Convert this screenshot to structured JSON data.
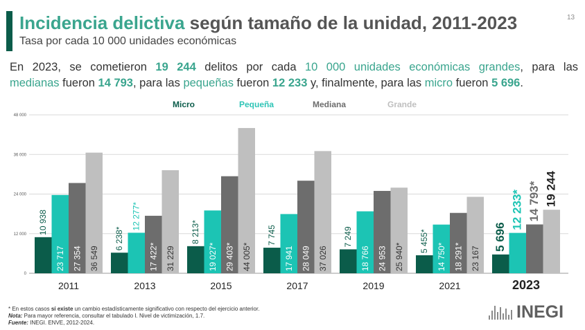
{
  "header": {
    "title_highlight": "Incidencia delictiva",
    "title_rest": " según tamaño de la unidad, 2011-2023",
    "subtitle": "Tasa por cada 10 000 unidades económicas",
    "page_number": "13"
  },
  "summary": {
    "line1": [
      {
        "text": "En 2023, se cometieron ",
        "style": "plain"
      },
      {
        "text": "19 244",
        "style": "b"
      },
      {
        "text": " delitos por cada ",
        "style": "plain"
      },
      {
        "text": "10 000 unidades económicas grandes",
        "style": "t"
      },
      {
        "text": ", para las",
        "style": "plain"
      }
    ],
    "line2": [
      {
        "text": "medianas",
        "style": "t"
      },
      {
        "text": " fueron ",
        "style": "plain"
      },
      {
        "text": "14 793",
        "style": "b"
      },
      {
        "text": ", para las ",
        "style": "plain"
      },
      {
        "text": "pequeñas",
        "style": "t"
      },
      {
        "text": " fueron ",
        "style": "plain"
      },
      {
        "text": "12 233",
        "style": "b"
      },
      {
        "text": " y, finalmente, para las ",
        "style": "plain"
      },
      {
        "text": "micro",
        "style": "t"
      },
      {
        "text": " fueron ",
        "style": "plain"
      },
      {
        "text": "5 696",
        "style": "b"
      },
      {
        "text": ".",
        "style": "plain"
      }
    ]
  },
  "chart_data": {
    "type": "bar",
    "categories": [
      "2011",
      "2013",
      "2015",
      "2017",
      "2019",
      "2021",
      "2023"
    ],
    "highlight_category": "2023",
    "ylim": [
      0,
      48000
    ],
    "yticks": [
      0,
      12000,
      24000,
      36000,
      48000
    ],
    "ytick_labels": [
      "0",
      "12 000",
      "24 000",
      "36 000",
      "48 000"
    ],
    "grid": true,
    "legend_position": "top-center",
    "series": [
      {
        "name": "Micro",
        "color": "#0b5c4a",
        "legend_color": "#0b5c4a",
        "values": [
          10938,
          6238,
          8213,
          7745,
          7249,
          5455,
          5696
        ],
        "labels": [
          "10 938",
          "6 238*",
          "8 213*",
          "7 745",
          "7 249",
          "5 455*",
          "5 696"
        ]
      },
      {
        "name": "Pequeña",
        "color": "#1cc4b4",
        "legend_color": "#2ec4b6",
        "values": [
          23717,
          12277,
          19027,
          17941,
          18766,
          14750,
          12233
        ],
        "labels": [
          "23 717",
          "12 277*",
          "19 027*",
          "17 941",
          "18 766",
          "14 750*",
          "12 233*"
        ]
      },
      {
        "name": "Mediana",
        "color": "#6d6d6d",
        "legend_color": "#6d6d6d",
        "values": [
          27354,
          17422,
          29403,
          28049,
          24953,
          18291,
          14793
        ],
        "labels": [
          "27 354",
          "17 422*",
          "29 403*",
          "28 049",
          "24 953",
          "18 291*",
          "14 793*"
        ]
      },
      {
        "name": "Grande",
        "color": "#bfbfbf",
        "legend_color": "#bfbfbf",
        "values": [
          36549,
          31229,
          44005,
          37026,
          25940,
          23167,
          19244
        ],
        "labels": [
          "36 549",
          "31 229",
          "44 005*",
          "37 026",
          "25 940*",
          "23 167",
          "19 244"
        ]
      }
    ]
  },
  "footer": {
    "note1_pre": "* En estos casos ",
    "note1_bold": "sí existe",
    "note1_post": " un cambio estadísticamente significativo con respecto del ejercicio anterior.",
    "note2_label": "Nota:",
    "note2_text": " Para mayor referencia, consultar el tabulado I. Nivel de victimización, 1.7.",
    "source_label": "Fuente:",
    "source_text": " INEGI. ENVE, 2012-2024."
  },
  "logo": {
    "text": "INEGI",
    "icon": "inegi-logo-icon"
  }
}
